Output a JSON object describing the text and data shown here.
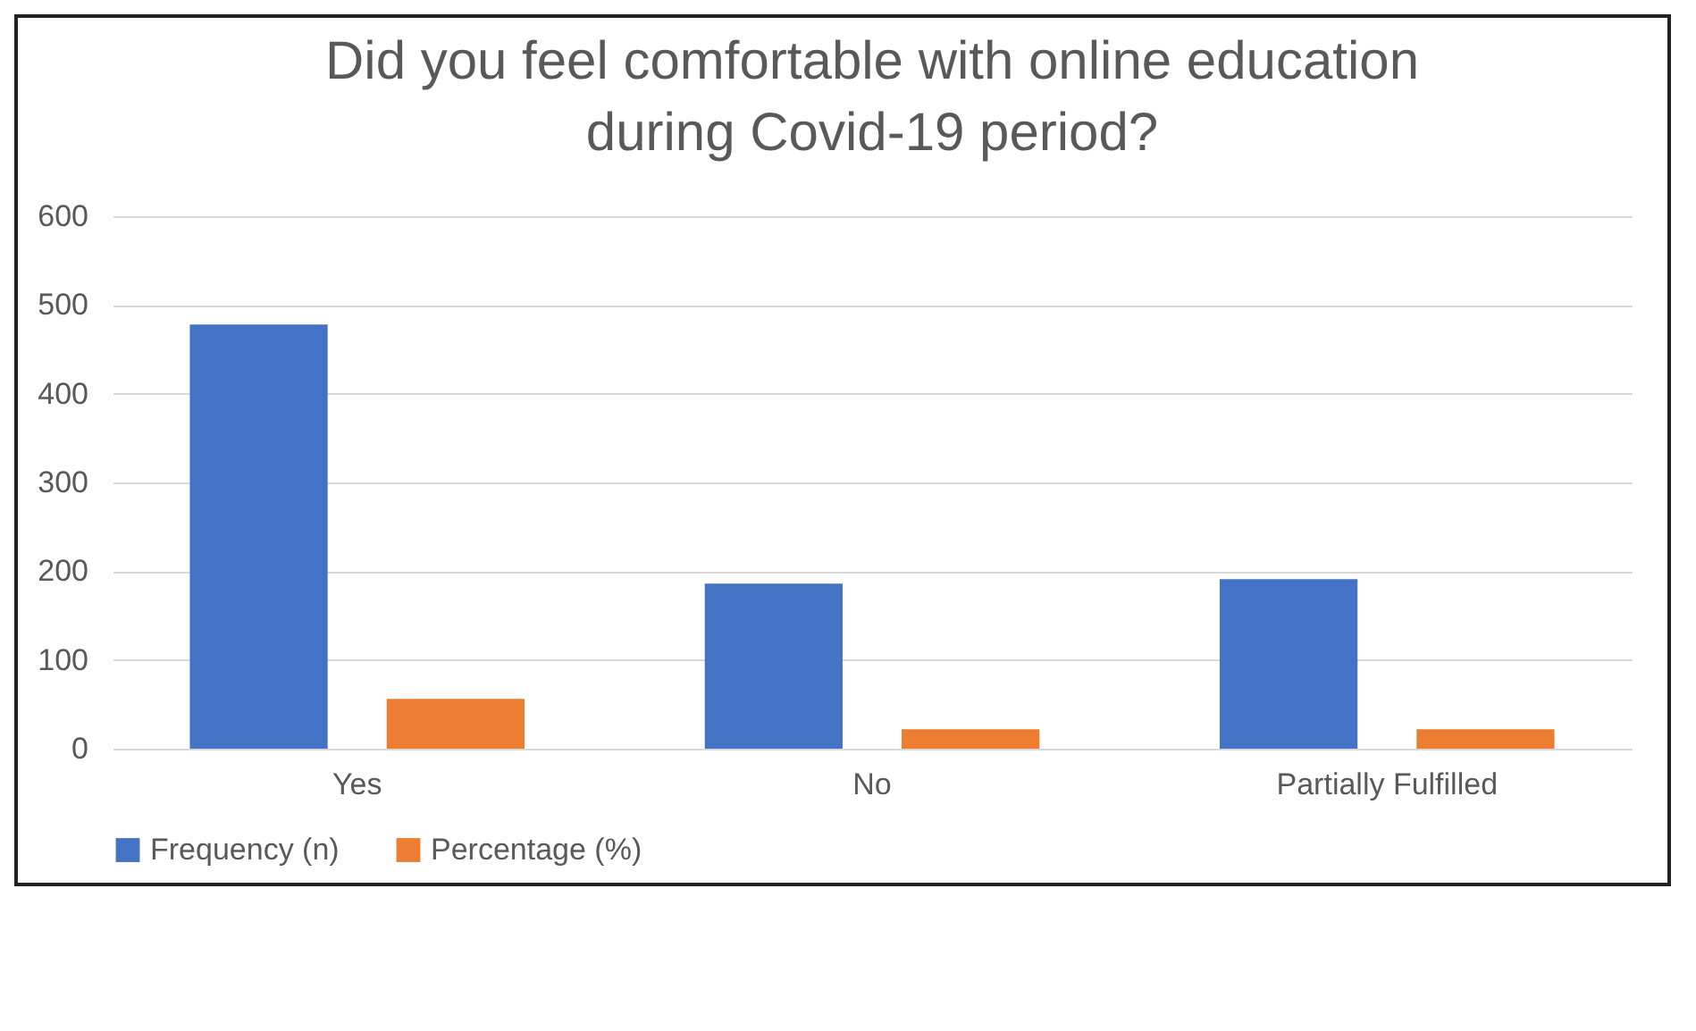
{
  "chart_data": {
    "type": "bar",
    "title": [
      "Did you feel comfortable with online education",
      "during Covid-19 period?"
    ],
    "categories": [
      "Yes",
      "No",
      "Partially Fulfilled"
    ],
    "series": [
      {
        "name": "Frequency (n)",
        "color": "#4472c4",
        "values": [
          478,
          186,
          191
        ]
      },
      {
        "name": "Percentage (%)",
        "color": "#ed7d31",
        "values": [
          56,
          22,
          22
        ]
      }
    ],
    "ylim": [
      0,
      600
    ],
    "yticks": [
      0,
      100,
      200,
      300,
      400,
      500,
      600
    ],
    "grid": "y",
    "legend": "bottom"
  }
}
